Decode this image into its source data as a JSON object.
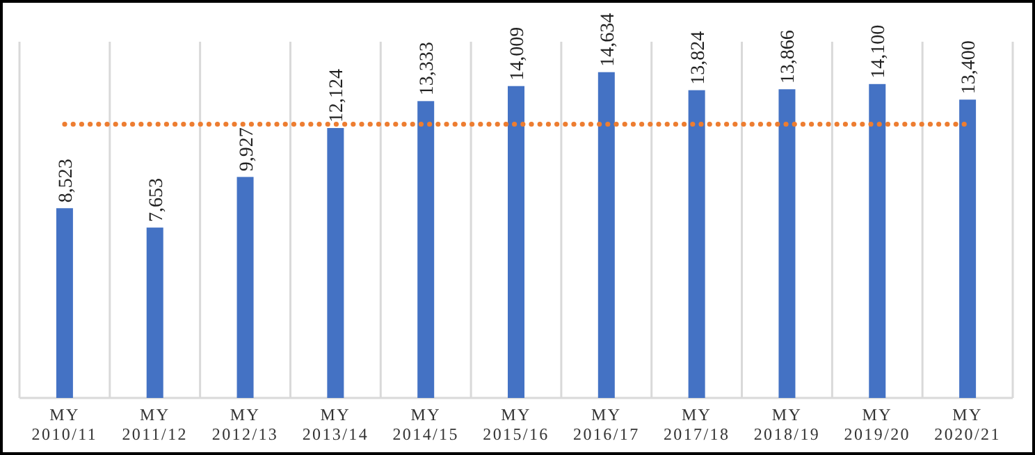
{
  "chart_data": {
    "type": "bar",
    "categories": [
      "MY 2010/11",
      "MY 2011/12",
      "MY 2012/13",
      "MY 2013/14",
      "MY 2014/15",
      "MY 2015/16",
      "MY 2016/17",
      "MY 2017/18",
      "MY 2018/19",
      "MY 2019/20",
      "MY 2020/21"
    ],
    "series": [
      {
        "color": "#4472c4",
        "values": [
          8523,
          7653,
          9927,
          12124,
          13333,
          14009,
          14634,
          13824,
          13866,
          14100,
          13400
        ],
        "value_labels": [
          "8,523",
          "7,653",
          "9,927",
          "12,124",
          "13,333",
          "14,009",
          "14,634",
          "13,824",
          "13,866",
          "14,100",
          "13,400"
        ]
      },
      {
        "type": "line",
        "color": "#ed7d31",
        "line_style": "dotted",
        "values": [
          12300,
          12300,
          12300,
          12300,
          12300,
          12300,
          12300,
          12300,
          12300,
          12300,
          12300
        ]
      }
    ],
    "ylim": [
      0,
      16000
    ],
    "tick_labels": "x",
    "grid": "x"
  }
}
